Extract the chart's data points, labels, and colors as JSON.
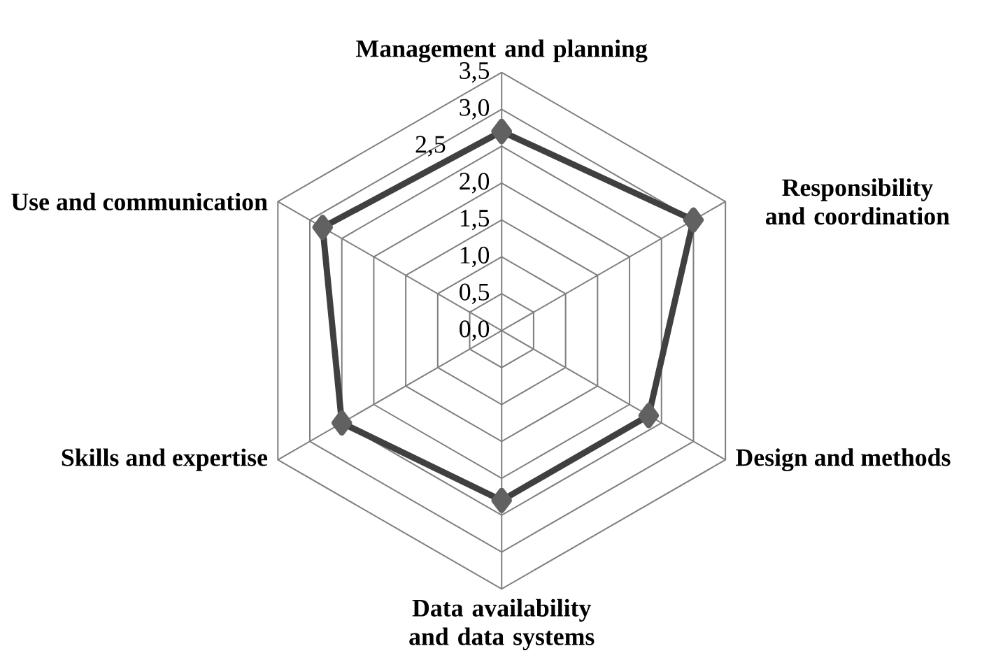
{
  "chart_data": {
    "type": "radar",
    "categories": [
      "Management and planning",
      "Responsibility and coordination",
      "Design and methods",
      "Data availability and data systems",
      "Skills and expertise",
      "Use and communication"
    ],
    "series": [
      {
        "color": "#404040",
        "values": [
          2.7,
          3.0,
          2.3,
          2.3,
          2.5,
          2.8
        ]
      }
    ],
    "ylim": [
      0,
      3.5
    ],
    "yticks": [
      {
        "value": 0,
        "label": "0,0"
      },
      {
        "value": 0.5,
        "label": "0,5"
      },
      {
        "value": 1,
        "label": "1,0"
      },
      {
        "value": 1.5,
        "label": "1,5"
      },
      {
        "value": 2,
        "label": "2,0"
      },
      {
        "value": 2.5,
        "label": "2,5"
      },
      {
        "value": 3,
        "label": "3,0"
      },
      {
        "value": 3.5,
        "label": "3,5"
      }
    ],
    "grid": true,
    "marker": "diamond"
  }
}
